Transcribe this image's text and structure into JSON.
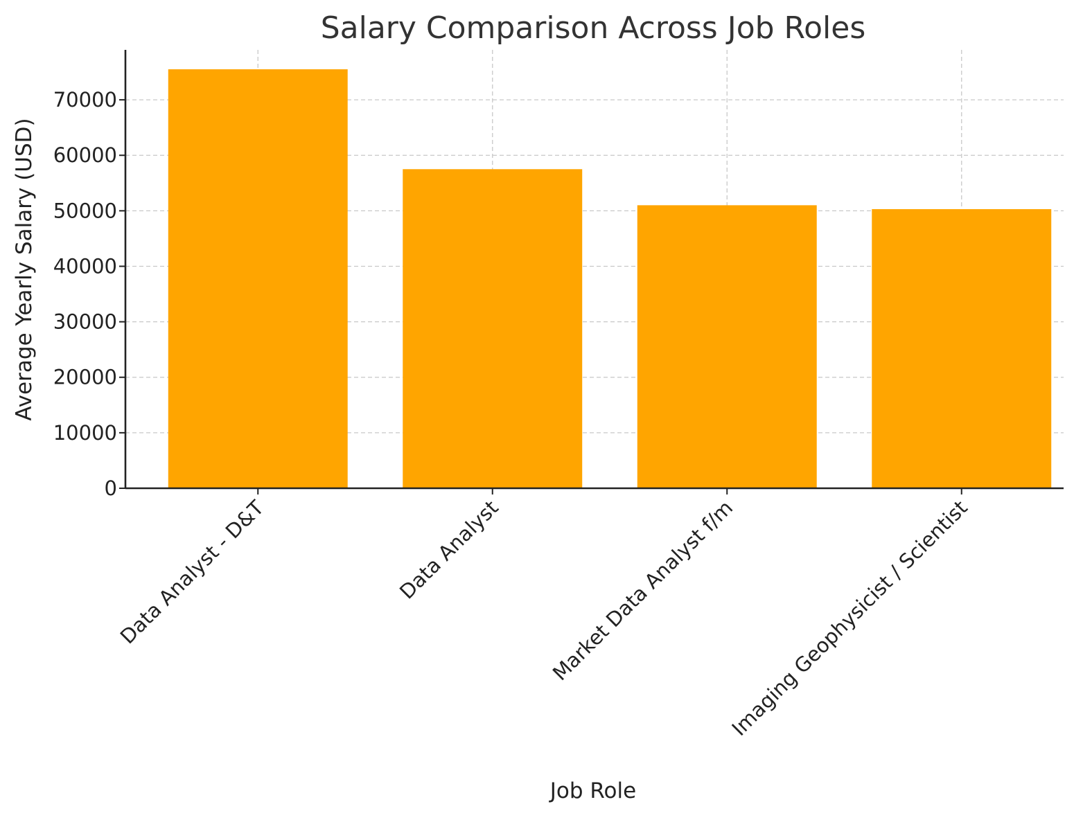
{
  "chart_data": {
    "type": "bar",
    "title": "Salary Comparison Across Job Roles",
    "xlabel": "Job Role",
    "ylabel": "Average Yearly Salary (USD)",
    "categories": [
      "Data Analyst - D&T",
      "Data Analyst",
      "Market Data Analyst f/m",
      "Imaging Geophysicist / Scientist"
    ],
    "values": [
      75500,
      57500,
      51000,
      50300
    ],
    "ylim": [
      0,
      79000
    ],
    "yticks": [
      0,
      10000,
      20000,
      30000,
      40000,
      50000,
      60000,
      70000
    ],
    "grid": true,
    "bar_color": "#ffa500"
  }
}
